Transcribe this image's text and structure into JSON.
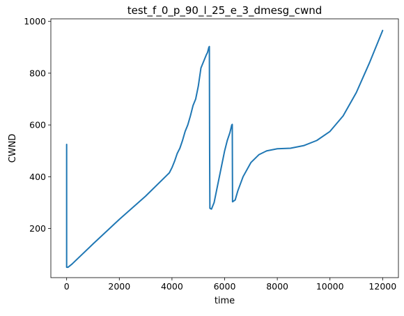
{
  "chart_data": {
    "type": "line",
    "title": "test_f_0_p_90_l_25_e_3_dmesg_cwnd",
    "xlabel": "time",
    "ylabel": "CWND",
    "xlim": [
      -600,
      12600
    ],
    "ylim": [
      10,
      1010
    ],
    "x_ticks": [
      0,
      2000,
      4000,
      6000,
      8000,
      10000,
      12000
    ],
    "y_ticks": [
      200,
      400,
      600,
      800,
      1000
    ],
    "grid": false,
    "series": [
      {
        "color": "#1f77b4",
        "points": [
          [
            0,
            525
          ],
          [
            0,
            50
          ],
          [
            50,
            50
          ],
          [
            200,
            62
          ],
          [
            1000,
            140
          ],
          [
            2000,
            235
          ],
          [
            3000,
            325
          ],
          [
            3800,
            405
          ],
          [
            3900,
            415
          ],
          [
            4000,
            435
          ],
          [
            4100,
            460
          ],
          [
            4200,
            490
          ],
          [
            4300,
            510
          ],
          [
            4400,
            540
          ],
          [
            4500,
            575
          ],
          [
            4600,
            600
          ],
          [
            4700,
            635
          ],
          [
            4800,
            675
          ],
          [
            4900,
            700
          ],
          [
            5000,
            750
          ],
          [
            5100,
            820
          ],
          [
            5200,
            845
          ],
          [
            5300,
            870
          ],
          [
            5350,
            880
          ],
          [
            5400,
            900
          ],
          [
            5420,
            903
          ],
          [
            5430,
            500
          ],
          [
            5440,
            278
          ],
          [
            5500,
            275
          ],
          [
            5600,
            300
          ],
          [
            5700,
            350
          ],
          [
            5800,
            400
          ],
          [
            5900,
            450
          ],
          [
            6000,
            500
          ],
          [
            6100,
            540
          ],
          [
            6200,
            570
          ],
          [
            6270,
            600
          ],
          [
            6290,
            602
          ],
          [
            6300,
            303
          ],
          [
            6400,
            310
          ],
          [
            6500,
            345
          ],
          [
            6700,
            400
          ],
          [
            7000,
            455
          ],
          [
            7300,
            485
          ],
          [
            7600,
            500
          ],
          [
            8000,
            508
          ],
          [
            8500,
            510
          ],
          [
            9000,
            520
          ],
          [
            9500,
            540
          ],
          [
            10000,
            575
          ],
          [
            10500,
            635
          ],
          [
            11000,
            725
          ],
          [
            11500,
            840
          ],
          [
            12000,
            965
          ]
        ]
      }
    ]
  }
}
